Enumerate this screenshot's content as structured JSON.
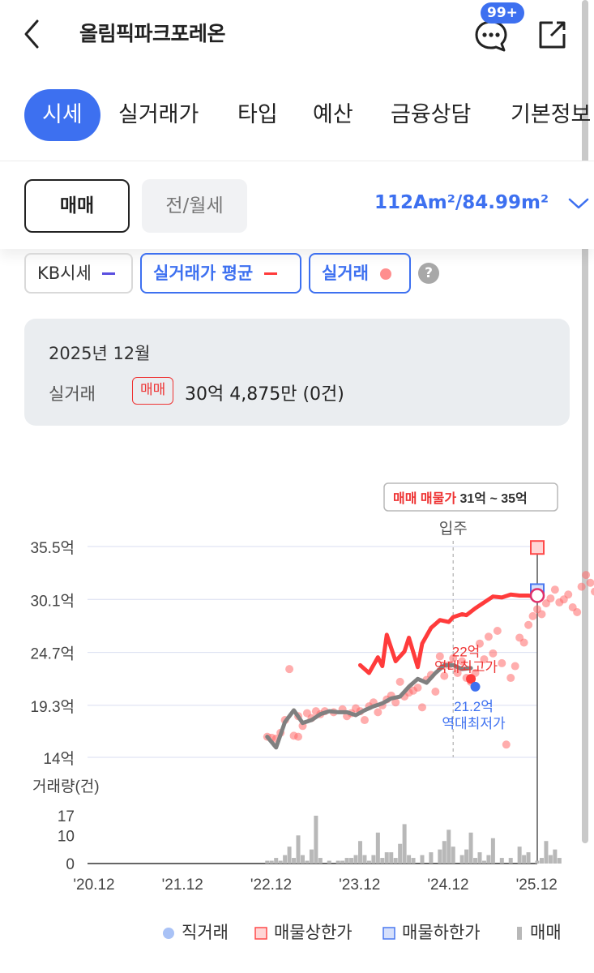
{
  "header": {
    "title": "올림픽파크포레온",
    "chat_badge": "99+"
  },
  "tabs": [
    {
      "label": "시세",
      "active": true
    },
    {
      "label": "실거래가",
      "active": false
    },
    {
      "label": "타입",
      "active": false
    },
    {
      "label": "예산",
      "active": false
    },
    {
      "label": "금융상담",
      "active": false
    },
    {
      "label": "기본정보",
      "active": false
    }
  ],
  "trade_type": {
    "sale": "매매",
    "rent": "전/월세",
    "selected": "매매",
    "area": "112Am²/84.99m²"
  },
  "legend_chips": {
    "kb": "KB시세",
    "avg": "실거래가 평균",
    "real": "실거래",
    "help": "?"
  },
  "info": {
    "date": "2025년 12월",
    "label": "실거래",
    "badge": "매매",
    "value": "30억 4,875만 (0건)"
  },
  "chart_tooltip": {
    "prefix": "매매 매물가",
    "range": "31억 ~ 35억"
  },
  "chart_data": {
    "type": "line",
    "move_in_label": "입주",
    "y_ticks": [
      "35.5억",
      "30.1억",
      "24.7억",
      "19.3억",
      "14억"
    ],
    "ylim": [
      14,
      35.5
    ],
    "x_ticks": [
      "'20.12",
      "'21.12",
      "'22.12",
      "'23.12",
      "'24.12",
      "'25.12"
    ],
    "volume_label": "거래량(건)",
    "volume_ticks": [
      "17",
      "10",
      "0"
    ],
    "annotations": {
      "high_value": "22억",
      "high_label": "역대최고가",
      "low_value": "21.2억",
      "low_label": "역대최저가"
    },
    "series": [
      {
        "name": "실거래가 평균",
        "color": "#ff3b3b",
        "x": [
          24.0,
          24.1,
          24.2,
          24.25,
          24.3,
          24.4,
          24.5,
          24.55,
          24.65,
          24.7,
          24.8,
          24.9,
          25.0,
          25.05,
          25.15,
          25.2,
          25.3,
          25.4,
          25.5,
          25.6,
          25.7,
          25.8,
          25.9,
          26.0
        ],
        "values": [
          23.4,
          22.6,
          24.2,
          23.3,
          26.5,
          23.8,
          24.8,
          26.2,
          23.2,
          25.6,
          27.2,
          28.0,
          27.8,
          28.3,
          28.6,
          28.5,
          29.2,
          29.8,
          30.4,
          30.3,
          30.6,
          30.5,
          30.5,
          30.4
        ]
      },
      {
        "name": "KB시세",
        "color": "#808080",
        "x": [
          22.95,
          23.05,
          23.15,
          23.25,
          23.35,
          23.45,
          23.55,
          23.65,
          23.75,
          23.85,
          23.95,
          24.05,
          24.15,
          24.25,
          24.35,
          24.45,
          24.55,
          24.65,
          24.75,
          24.85,
          24.95,
          25.05,
          25.15,
          25.25
        ],
        "values": [
          16.1,
          15.0,
          17.6,
          18.8,
          17.5,
          17.8,
          18.4,
          18.7,
          18.6,
          18.6,
          18.3,
          18.8,
          19.2,
          19.5,
          20.0,
          20.2,
          21.2,
          22.0,
          21.6,
          22.6,
          23.4,
          23.4,
          23.0,
          23.1
        ]
      }
    ],
    "scatter": {
      "name": "실거래",
      "color": "#ff6a6a",
      "points": [
        [
          22.95,
          16.1
        ],
        [
          23.0,
          16.0
        ],
        [
          23.05,
          15.9
        ],
        [
          23.1,
          16.5
        ],
        [
          23.15,
          17.8
        ],
        [
          23.2,
          23.0
        ],
        [
          23.25,
          16.2
        ],
        [
          23.3,
          16.1
        ],
        [
          23.3,
          18.2
        ],
        [
          23.35,
          17.2
        ],
        [
          23.4,
          18.5
        ],
        [
          23.45,
          18.0
        ],
        [
          23.5,
          18.7
        ],
        [
          23.55,
          18.4
        ],
        [
          23.6,
          18.7
        ],
        [
          23.7,
          18.6
        ],
        [
          23.8,
          18.9
        ],
        [
          23.85,
          18.2
        ],
        [
          23.9,
          18.5
        ],
        [
          23.95,
          19.0
        ],
        [
          24.0,
          18.7
        ],
        [
          24.05,
          17.8
        ],
        [
          24.1,
          19.2
        ],
        [
          24.15,
          19.6
        ],
        [
          24.2,
          18.6
        ],
        [
          24.25,
          19.3
        ],
        [
          24.3,
          19.9
        ],
        [
          24.35,
          20.3
        ],
        [
          24.4,
          19.6
        ],
        [
          24.45,
          21.7
        ],
        [
          24.5,
          20.2
        ],
        [
          24.55,
          20.6
        ],
        [
          24.6,
          20.8
        ],
        [
          24.65,
          21.1
        ],
        [
          24.7,
          19.1
        ],
        [
          24.75,
          21.9
        ],
        [
          24.8,
          22.4
        ],
        [
          24.85,
          20.7
        ],
        [
          24.9,
          24.3
        ],
        [
          24.95,
          22.3
        ],
        [
          25.0,
          23.4
        ],
        [
          25.05,
          24.1
        ],
        [
          25.1,
          22.6
        ],
        [
          25.15,
          23.8
        ],
        [
          25.2,
          22.1
        ],
        [
          25.25,
          21.7
        ],
        [
          25.3,
          22.6
        ],
        [
          25.35,
          25.6
        ],
        [
          25.4,
          24.0
        ],
        [
          25.45,
          26.3
        ],
        [
          25.5,
          24.6
        ],
        [
          25.55,
          26.9
        ],
        [
          25.6,
          23.6
        ],
        [
          25.65,
          15.3
        ],
        [
          25.7,
          22.1
        ],
        [
          25.75,
          23.3
        ],
        [
          25.8,
          26.2
        ],
        [
          25.85,
          25.7
        ],
        [
          25.9,
          27.5
        ],
        [
          25.95,
          28.4
        ],
        [
          26.0,
          29.1
        ],
        [
          26.05,
          28.6
        ],
        [
          26.1,
          29.7
        ],
        [
          26.15,
          30.2
        ],
        [
          26.2,
          31.1
        ],
        [
          26.25,
          29.8
        ],
        [
          26.3,
          30.1
        ],
        [
          26.35,
          30.6
        ],
        [
          26.4,
          29.3
        ],
        [
          26.45,
          28.8
        ],
        [
          26.5,
          31.4
        ],
        [
          26.55,
          32.6
        ],
        [
          26.6,
          31.8
        ],
        [
          26.65,
          30.9
        ],
        [
          26.7,
          30.4
        ],
        [
          26.75,
          32.1
        ],
        [
          26.8,
          31.6
        ]
      ],
      "low_point": [
        25.3,
        21.2
      ],
      "high_point": [
        25.25,
        22.0
      ]
    },
    "volume": {
      "name": "매매",
      "color": "#b8b8b8",
      "x": [
        22.95,
        23.0,
        23.05,
        23.1,
        23.15,
        23.2,
        23.25,
        23.3,
        23.35,
        23.4,
        23.45,
        23.5,
        23.55,
        23.65,
        23.75,
        23.8,
        23.85,
        23.9,
        23.95,
        24.0,
        24.05,
        24.1,
        24.15,
        24.2,
        24.25,
        24.3,
        24.35,
        24.4,
        24.45,
        24.5,
        24.55,
        24.6,
        24.7,
        24.8,
        24.9,
        24.95,
        25.0,
        25.05,
        25.15,
        25.2,
        25.25,
        25.3,
        25.35,
        25.4,
        25.45,
        25.5,
        25.6,
        25.7,
        25.8,
        25.85,
        25.9,
        26.0,
        26.05,
        26.1,
        26.15,
        26.2,
        26.25
      ],
      "values": [
        1,
        1,
        2,
        1,
        3,
        6,
        2,
        10,
        3,
        1,
        5,
        17,
        2,
        1,
        1,
        1,
        2,
        2,
        3,
        8,
        3,
        1,
        3,
        11,
        2,
        4,
        4,
        2,
        7,
        14,
        3,
        2,
        3,
        4,
        5,
        8,
        12,
        6,
        3,
        5,
        11,
        2,
        4,
        1,
        3,
        9,
        2,
        2,
        6,
        3,
        4,
        1,
        2,
        8,
        3,
        5,
        2
      ]
    }
  },
  "bottom_legend": {
    "direct": "직거래",
    "upper": "매물상한가",
    "lower": "매물하한가",
    "sale": "매매"
  },
  "colors": {
    "accent": "#3d70f0",
    "red": "#ff3b3b",
    "kb": "#808080"
  }
}
